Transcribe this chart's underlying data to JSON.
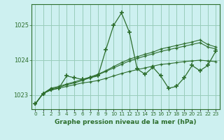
{
  "title": "Graphe pression niveau de la mer (hPa)",
  "bg_color": "#cdf0f0",
  "grid_color": "#99ccbb",
  "line_color": "#2d6e2d",
  "x_labels": [
    "0",
    "1",
    "2",
    "3",
    "4",
    "5",
    "6",
    "7",
    "8",
    "9",
    "10",
    "11",
    "12",
    "13",
    "14",
    "15",
    "16",
    "17",
    "18",
    "19",
    "20",
    "21",
    "22",
    "23"
  ],
  "ylim": [
    1022.6,
    1025.6
  ],
  "yticks": [
    1023,
    1024,
    1025
  ],
  "series": {
    "main": [
      1022.75,
      1023.05,
      1023.15,
      1023.2,
      1023.55,
      1023.5,
      1023.45,
      1023.5,
      1023.55,
      1024.3,
      1025.0,
      1025.35,
      1024.8,
      1023.75,
      1023.6,
      1023.8,
      1023.55,
      1023.2,
      1023.25,
      1023.5,
      1023.85,
      1023.7,
      1023.85,
      1024.25
    ],
    "trend1": [
      1022.75,
      1023.05,
      1023.15,
      1023.2,
      1023.25,
      1023.3,
      1023.35,
      1023.38,
      1023.42,
      1023.48,
      1023.55,
      1023.62,
      1023.68,
      1023.73,
      1023.78,
      1023.83,
      1023.88,
      1023.9,
      1023.93,
      1023.96,
      1023.98,
      1024.0,
      1023.98,
      1023.96
    ],
    "trend2": [
      1022.75,
      1023.05,
      1023.18,
      1023.22,
      1023.3,
      1023.35,
      1023.42,
      1023.5,
      1023.58,
      1023.68,
      1023.78,
      1023.88,
      1023.98,
      1024.05,
      1024.12,
      1024.18,
      1024.25,
      1024.3,
      1024.35,
      1024.4,
      1024.45,
      1024.5,
      1024.38,
      1024.32
    ],
    "trend3": [
      1022.75,
      1023.05,
      1023.2,
      1023.25,
      1023.32,
      1023.38,
      1023.45,
      1023.52,
      1023.6,
      1023.7,
      1023.82,
      1023.93,
      1024.03,
      1024.1,
      1024.17,
      1024.23,
      1024.32,
      1024.37,
      1024.42,
      1024.47,
      1024.52,
      1024.58,
      1024.45,
      1024.38
    ]
  }
}
